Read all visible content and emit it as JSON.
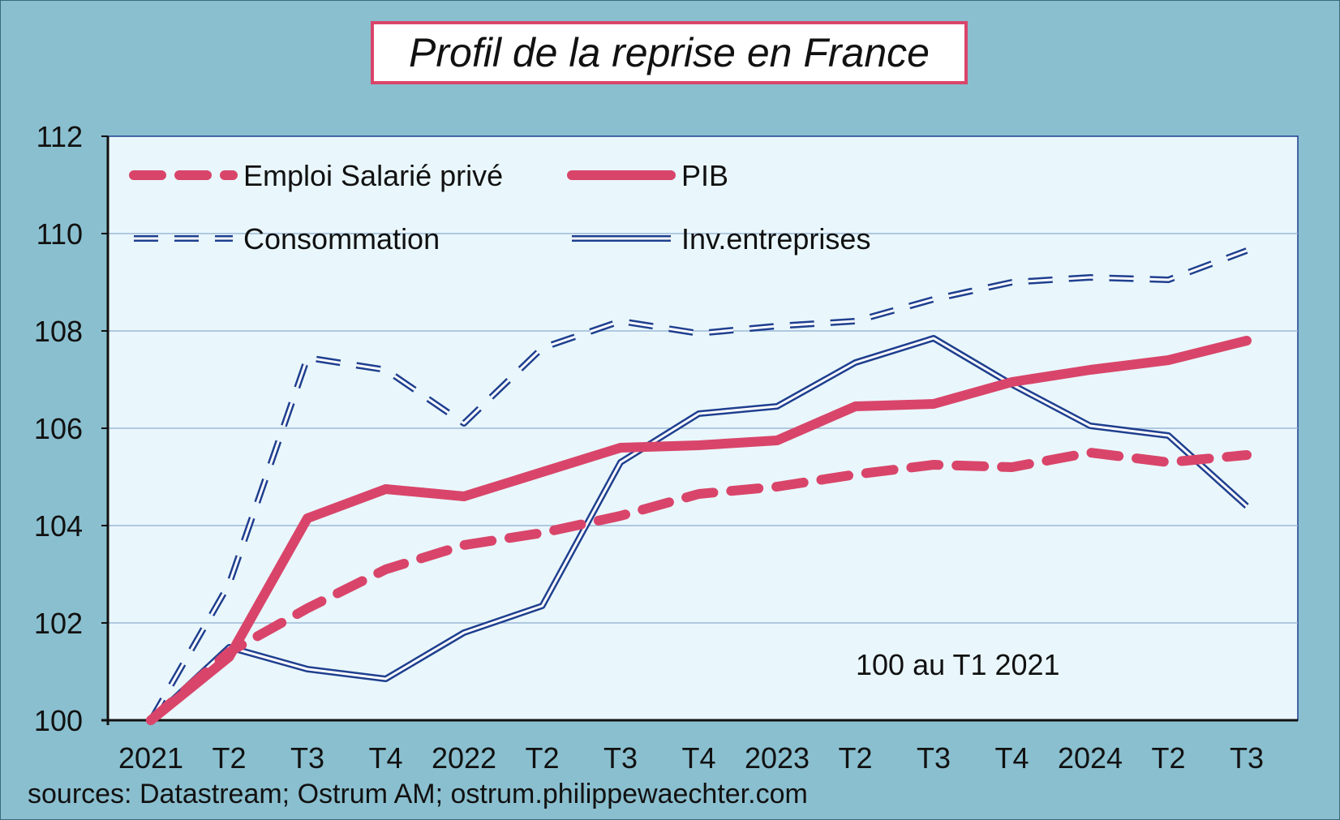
{
  "chart_data": {
    "type": "line",
    "title": "Profil de la reprise en France",
    "categories": [
      "2021",
      "T2",
      "T3",
      "T4",
      "2022",
      "T2",
      "T3",
      "T4",
      "2023",
      "T2",
      "T3",
      "T4",
      "2024",
      "T2",
      "T3"
    ],
    "ylim": [
      100,
      112
    ],
    "yticks": [
      100,
      102,
      104,
      106,
      108,
      110,
      112
    ],
    "grid": true,
    "legend_position": "top-left",
    "annotation": "100 au T1 2021",
    "series": [
      {
        "name": "Emploi Salarié privé",
        "color": "#d9456a",
        "style": "dashed-thick",
        "values": [
          100.0,
          101.4,
          102.3,
          103.1,
          103.6,
          103.85,
          104.2,
          104.65,
          104.8,
          105.05,
          105.25,
          105.2,
          105.5,
          105.3,
          105.45
        ]
      },
      {
        "name": "PIB",
        "color": "#d9456a",
        "style": "solid-thick",
        "values": [
          100.0,
          101.3,
          104.15,
          104.75,
          104.6,
          105.1,
          105.6,
          105.65,
          105.75,
          106.45,
          106.5,
          106.95,
          107.2,
          107.4,
          107.8
        ]
      },
      {
        "name": "Consommation",
        "color": "#1f3f8f",
        "style": "dashed-double",
        "values": [
          100.0,
          102.8,
          107.45,
          107.2,
          106.1,
          107.65,
          108.2,
          107.95,
          108.1,
          108.2,
          108.65,
          109.0,
          109.1,
          109.05,
          109.65
        ]
      },
      {
        "name": "Inv.entreprises",
        "color": "#1f3f8f",
        "style": "solid-double",
        "values": [
          100.0,
          101.5,
          101.05,
          100.85,
          101.8,
          102.35,
          105.3,
          106.3,
          106.45,
          107.35,
          107.85,
          106.9,
          106.05,
          105.85,
          104.4
        ]
      }
    ]
  },
  "source_text": "sources: Datastream; Ostrum AM; ostrum.philippewaechter.com"
}
